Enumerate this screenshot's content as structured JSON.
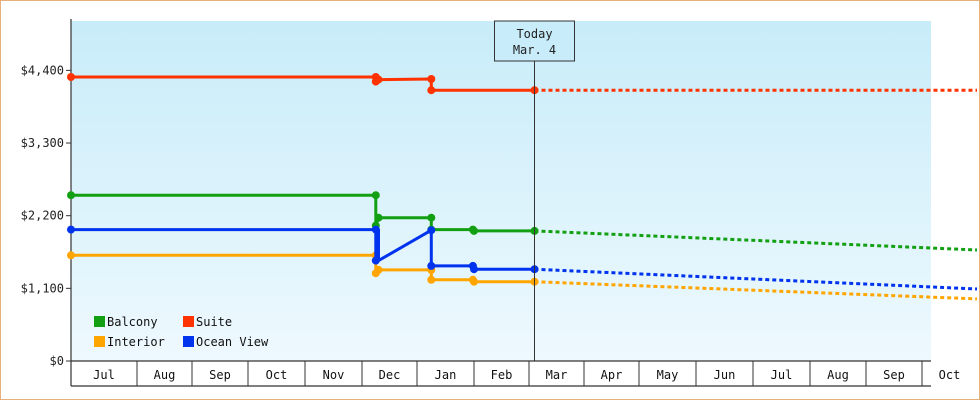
{
  "chart_data": {
    "type": "line",
    "title": "",
    "xlabel": "",
    "ylabel": "",
    "ylim": [
      0,
      4950
    ],
    "y_ticks": [
      0,
      1100,
      2200,
      3300,
      4400
    ],
    "y_tick_labels": [
      "$0",
      "$1,100",
      "$2,200",
      "$3,300",
      "$4,400"
    ],
    "x_tick_labels": [
      "Jul",
      "Aug",
      "Sep",
      "Oct",
      "Nov",
      "Dec",
      "Jan",
      "Feb",
      "Mar",
      "Apr",
      "May",
      "Jun",
      "Jul",
      "Aug",
      "Sep",
      "Oct"
    ],
    "x_unit": "months since start of Jul (first visible month)",
    "today": {
      "title": "Today",
      "date": "Mar. 4",
      "x": 8.1
    },
    "legend_position": "bottom-left",
    "grid": false,
    "series": [
      {
        "name": "Balcony",
        "color": "#12a012",
        "history": [
          [
            0,
            2510
          ],
          [
            5.25,
            2510
          ],
          [
            5.25,
            2050
          ],
          [
            5.3,
            2170
          ],
          [
            6.25,
            2170
          ],
          [
            6.25,
            1990
          ],
          [
            6.98,
            1990
          ],
          [
            7.0,
            1970
          ],
          [
            8.1,
            1970
          ]
        ],
        "markers": [
          [
            0,
            2510
          ],
          [
            5.25,
            2510
          ],
          [
            5.25,
            2050
          ],
          [
            5.3,
            2170
          ],
          [
            6.25,
            2170
          ],
          [
            6.25,
            1990
          ],
          [
            6.98,
            1990
          ],
          [
            7.0,
            1970
          ],
          [
            8.1,
            1970
          ]
        ],
        "forecast": [
          [
            8.1,
            1970
          ],
          [
            16.0,
            1680
          ]
        ]
      },
      {
        "name": "Suite",
        "color": "#ff3300",
        "history": [
          [
            0,
            4300
          ],
          [
            5.25,
            4300
          ],
          [
            5.25,
            4230
          ],
          [
            5.3,
            4260
          ],
          [
            6.25,
            4270
          ],
          [
            6.25,
            4100
          ],
          [
            8.1,
            4100
          ]
        ],
        "markers": [
          [
            0,
            4300
          ],
          [
            5.25,
            4300
          ],
          [
            5.25,
            4230
          ],
          [
            5.3,
            4260
          ],
          [
            6.25,
            4270
          ],
          [
            6.25,
            4100
          ],
          [
            8.1,
            4100
          ]
        ],
        "forecast": [
          [
            8.1,
            4100
          ],
          [
            16.0,
            4100
          ]
        ]
      },
      {
        "name": "Interior",
        "color": "#ffa500",
        "history": [
          [
            0,
            1600
          ],
          [
            5.25,
            1600
          ],
          [
            5.25,
            1330
          ],
          [
            5.3,
            1380
          ],
          [
            6.25,
            1380
          ],
          [
            6.25,
            1230
          ],
          [
            6.98,
            1230
          ],
          [
            7.0,
            1200
          ],
          [
            8.1,
            1200
          ]
        ],
        "markers": [
          [
            0,
            1600
          ],
          [
            5.25,
            1600
          ],
          [
            5.25,
            1330
          ],
          [
            5.3,
            1380
          ],
          [
            6.25,
            1380
          ],
          [
            6.25,
            1230
          ],
          [
            6.98,
            1230
          ],
          [
            7.0,
            1200
          ],
          [
            8.1,
            1200
          ]
        ],
        "forecast": [
          [
            8.1,
            1200
          ],
          [
            16.0,
            940
          ]
        ]
      },
      {
        "name": "Ocean View",
        "color": "#0033ee",
        "history": [
          [
            0,
            1990
          ],
          [
            5.25,
            1990
          ],
          [
            5.25,
            1520
          ],
          [
            5.3,
            1990
          ],
          [
            5.3,
            1520
          ],
          [
            6.25,
            1980
          ],
          [
            6.25,
            1440
          ],
          [
            6.98,
            1440
          ],
          [
            7.0,
            1390
          ],
          [
            8.1,
            1390
          ]
        ],
        "markers": [
          [
            0,
            1990
          ],
          [
            5.25,
            1990
          ],
          [
            5.25,
            1520
          ],
          [
            6.25,
            1980
          ],
          [
            6.25,
            1440
          ],
          [
            6.98,
            1440
          ],
          [
            7.0,
            1390
          ],
          [
            8.1,
            1390
          ]
        ],
        "forecast": [
          [
            8.1,
            1390
          ],
          [
            16.0,
            1090
          ]
        ]
      }
    ]
  }
}
